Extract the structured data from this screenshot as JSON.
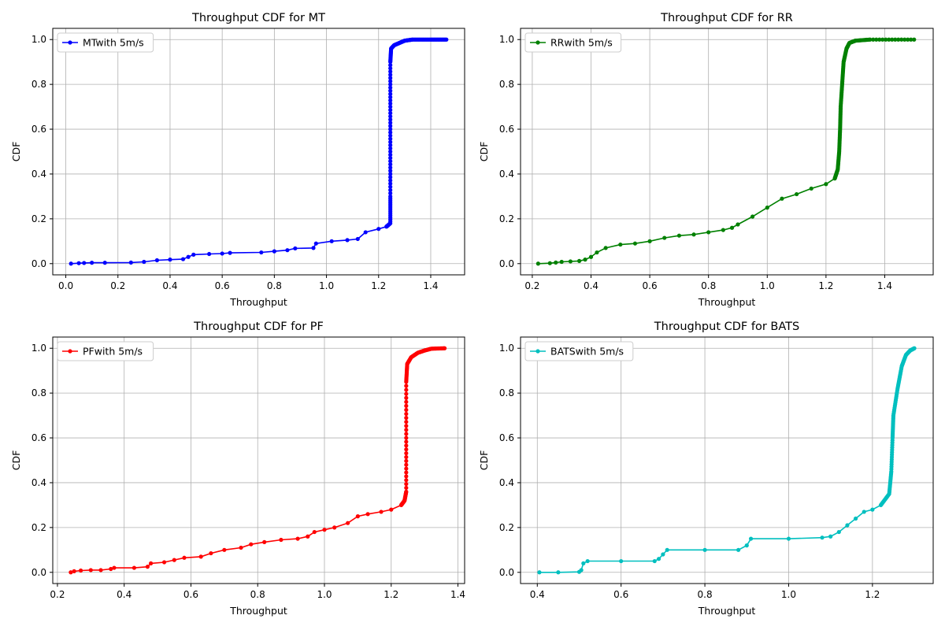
{
  "chart_data": [
    {
      "type": "line",
      "title": "Throughput CDF for MT",
      "xlabel": "Throughput",
      "ylabel": "CDF",
      "xlim": [
        -0.05,
        1.53
      ],
      "ylim": [
        -0.05,
        1.05
      ],
      "xticks": [
        "0.0",
        "0.2",
        "0.4",
        "0.6",
        "0.8",
        "1.0",
        "1.2",
        "1.4"
      ],
      "yticks": [
        "0.0",
        "0.2",
        "0.4",
        "0.6",
        "0.8",
        "1.0"
      ],
      "grid": true,
      "legend_position": "upper-left",
      "color": "#0000ff",
      "series": [
        {
          "name": "MTwith 5m/s",
          "points": [
            [
              0.02,
              0.0
            ],
            [
              0.05,
              0.002
            ],
            [
              0.07,
              0.003
            ],
            [
              0.1,
              0.004
            ],
            [
              0.15,
              0.004
            ],
            [
              0.25,
              0.005
            ],
            [
              0.3,
              0.008
            ],
            [
              0.35,
              0.015
            ],
            [
              0.4,
              0.018
            ],
            [
              0.45,
              0.02
            ],
            [
              0.47,
              0.03
            ],
            [
              0.49,
              0.04
            ],
            [
              0.55,
              0.043
            ],
            [
              0.6,
              0.045
            ],
            [
              0.63,
              0.048
            ],
            [
              0.75,
              0.05
            ],
            [
              0.8,
              0.055
            ],
            [
              0.85,
              0.06
            ],
            [
              0.88,
              0.068
            ],
            [
              0.95,
              0.07
            ],
            [
              0.96,
              0.09
            ],
            [
              1.02,
              0.1
            ],
            [
              1.08,
              0.105
            ],
            [
              1.12,
              0.11
            ],
            [
              1.15,
              0.14
            ],
            [
              1.2,
              0.155
            ],
            [
              1.23,
              0.165
            ],
            [
              1.245,
              0.18
            ],
            [
              1.245,
              0.3
            ],
            [
              1.245,
              0.5
            ],
            [
              1.245,
              0.7
            ],
            [
              1.245,
              0.9
            ],
            [
              1.248,
              0.96
            ],
            [
              1.26,
              0.975
            ],
            [
              1.28,
              0.985
            ],
            [
              1.3,
              0.995
            ],
            [
              1.33,
              1.0
            ],
            [
              1.4,
              1.0
            ],
            [
              1.46,
              1.0
            ]
          ]
        }
      ]
    },
    {
      "type": "line",
      "title": "Throughput CDF for RR",
      "xlabel": "Throughput",
      "ylabel": "CDF",
      "xlim": [
        0.16,
        1.565
      ],
      "ylim": [
        -0.05,
        1.05
      ],
      "xticks": [
        "0.2",
        "0.4",
        "0.6",
        "0.8",
        "1.0",
        "1.2",
        "1.4"
      ],
      "yticks": [
        "0.0",
        "0.2",
        "0.4",
        "0.6",
        "0.8",
        "1.0"
      ],
      "grid": true,
      "legend_position": "upper-left",
      "color": "#008000",
      "series": [
        {
          "name": "RRwith 5m/s",
          "points": [
            [
              0.22,
              0.0
            ],
            [
              0.26,
              0.002
            ],
            [
              0.28,
              0.005
            ],
            [
              0.3,
              0.008
            ],
            [
              0.33,
              0.01
            ],
            [
              0.36,
              0.012
            ],
            [
              0.38,
              0.018
            ],
            [
              0.4,
              0.03
            ],
            [
              0.42,
              0.05
            ],
            [
              0.45,
              0.07
            ],
            [
              0.5,
              0.085
            ],
            [
              0.55,
              0.09
            ],
            [
              0.6,
              0.1
            ],
            [
              0.65,
              0.115
            ],
            [
              0.7,
              0.125
            ],
            [
              0.75,
              0.13
            ],
            [
              0.8,
              0.14
            ],
            [
              0.85,
              0.15
            ],
            [
              0.88,
              0.16
            ],
            [
              0.9,
              0.175
            ],
            [
              0.95,
              0.21
            ],
            [
              1.0,
              0.25
            ],
            [
              1.05,
              0.29
            ],
            [
              1.1,
              0.31
            ],
            [
              1.15,
              0.335
            ],
            [
              1.2,
              0.355
            ],
            [
              1.23,
              0.38
            ],
            [
              1.24,
              0.42
            ],
            [
              1.245,
              0.5
            ],
            [
              1.248,
              0.6
            ],
            [
              1.25,
              0.7
            ],
            [
              1.255,
              0.8
            ],
            [
              1.26,
              0.9
            ],
            [
              1.27,
              0.96
            ],
            [
              1.28,
              0.985
            ],
            [
              1.3,
              0.995
            ],
            [
              1.35,
              1.0
            ],
            [
              1.5,
              1.0
            ]
          ]
        }
      ]
    },
    {
      "type": "line",
      "title": "Throughput CDF for PF",
      "xlabel": "Throughput",
      "ylabel": "CDF",
      "xlim": [
        0.186,
        1.42
      ],
      "ylim": [
        -0.05,
        1.05
      ],
      "xticks": [
        "0.2",
        "0.4",
        "0.6",
        "0.8",
        "1.0",
        "1.2",
        "1.4"
      ],
      "yticks": [
        "0.0",
        "0.2",
        "0.4",
        "0.6",
        "0.8",
        "1.0"
      ],
      "grid": true,
      "legend_position": "upper-left",
      "color": "#ff0000",
      "series": [
        {
          "name": "PFwith 5m/s",
          "points": [
            [
              0.24,
              0.0
            ],
            [
              0.25,
              0.005
            ],
            [
              0.27,
              0.008
            ],
            [
              0.3,
              0.01
            ],
            [
              0.33,
              0.01
            ],
            [
              0.36,
              0.015
            ],
            [
              0.37,
              0.02
            ],
            [
              0.43,
              0.02
            ],
            [
              0.47,
              0.025
            ],
            [
              0.48,
              0.04
            ],
            [
              0.52,
              0.045
            ],
            [
              0.55,
              0.055
            ],
            [
              0.58,
              0.065
            ],
            [
              0.63,
              0.07
            ],
            [
              0.66,
              0.085
            ],
            [
              0.7,
              0.1
            ],
            [
              0.75,
              0.11
            ],
            [
              0.78,
              0.125
            ],
            [
              0.82,
              0.135
            ],
            [
              0.87,
              0.145
            ],
            [
              0.92,
              0.15
            ],
            [
              0.95,
              0.16
            ],
            [
              0.97,
              0.18
            ],
            [
              1.0,
              0.19
            ],
            [
              1.03,
              0.2
            ],
            [
              1.07,
              0.22
            ],
            [
              1.1,
              0.25
            ],
            [
              1.13,
              0.26
            ],
            [
              1.17,
              0.27
            ],
            [
              1.2,
              0.28
            ],
            [
              1.23,
              0.3
            ],
            [
              1.24,
              0.32
            ],
            [
              1.245,
              0.36
            ],
            [
              1.245,
              0.6
            ],
            [
              1.245,
              0.85
            ],
            [
              1.248,
              0.93
            ],
            [
              1.26,
              0.96
            ],
            [
              1.28,
              0.98
            ],
            [
              1.3,
              0.99
            ],
            [
              1.32,
              0.998
            ],
            [
              1.36,
              1.0
            ]
          ]
        }
      ]
    },
    {
      "type": "line",
      "title": "Throughput CDF for BATS",
      "xlabel": "Throughput",
      "ylabel": "CDF",
      "xlim": [
        0.36,
        1.345
      ],
      "ylim": [
        -0.05,
        1.05
      ],
      "xticks": [
        "0.4",
        "0.6",
        "0.8",
        "1.0",
        "1.2"
      ],
      "yticks": [
        "0.0",
        "0.2",
        "0.4",
        "0.6",
        "0.8",
        "1.0"
      ],
      "grid": true,
      "legend_position": "upper-left",
      "color": "#00bfbf",
      "series": [
        {
          "name": "BATSwith 5m/s",
          "points": [
            [
              0.405,
              0.0
            ],
            [
              0.45,
              0.0
            ],
            [
              0.5,
              0.002
            ],
            [
              0.505,
              0.01
            ],
            [
              0.51,
              0.04
            ],
            [
              0.52,
              0.05
            ],
            [
              0.6,
              0.05
            ],
            [
              0.68,
              0.05
            ],
            [
              0.69,
              0.06
            ],
            [
              0.7,
              0.08
            ],
            [
              0.71,
              0.1
            ],
            [
              0.8,
              0.1
            ],
            [
              0.88,
              0.1
            ],
            [
              0.9,
              0.12
            ],
            [
              0.91,
              0.15
            ],
            [
              1.0,
              0.15
            ],
            [
              1.08,
              0.155
            ],
            [
              1.1,
              0.16
            ],
            [
              1.12,
              0.18
            ],
            [
              1.14,
              0.21
            ],
            [
              1.16,
              0.24
            ],
            [
              1.18,
              0.27
            ],
            [
              1.2,
              0.28
            ],
            [
              1.22,
              0.3
            ],
            [
              1.24,
              0.35
            ],
            [
              1.245,
              0.45
            ],
            [
              1.248,
              0.6
            ],
            [
              1.25,
              0.7
            ],
            [
              1.26,
              0.82
            ],
            [
              1.27,
              0.92
            ],
            [
              1.28,
              0.97
            ],
            [
              1.29,
              0.99
            ],
            [
              1.3,
              1.0
            ]
          ]
        }
      ]
    }
  ]
}
